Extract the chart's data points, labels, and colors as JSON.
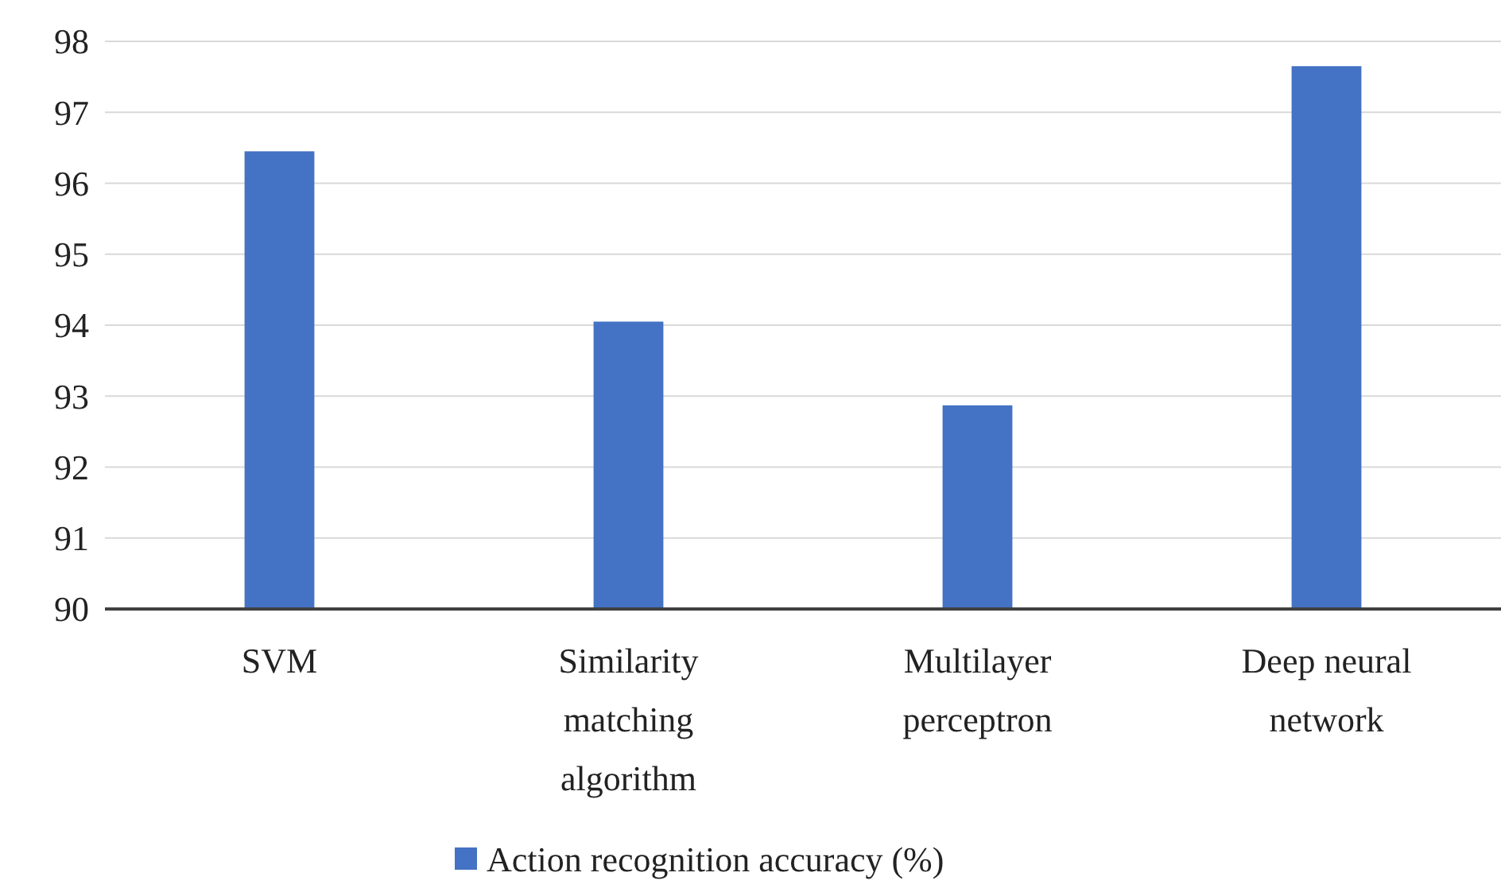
{
  "chart_data": {
    "type": "bar",
    "categories": [
      "SVM",
      "Similarity matching algorithm",
      "Multilayer perceptron",
      "Deep neural network"
    ],
    "series": [
      {
        "name": "Action recognition accuracy (%)",
        "color": "#4472c4",
        "values": [
          96.45,
          94.05,
          92.87,
          97.65
        ]
      }
    ],
    "ylim": [
      90,
      98
    ],
    "yticks": [
      90,
      91,
      92,
      93,
      94,
      95,
      96,
      97,
      98
    ],
    "grid": "y",
    "legend": "bottom"
  }
}
